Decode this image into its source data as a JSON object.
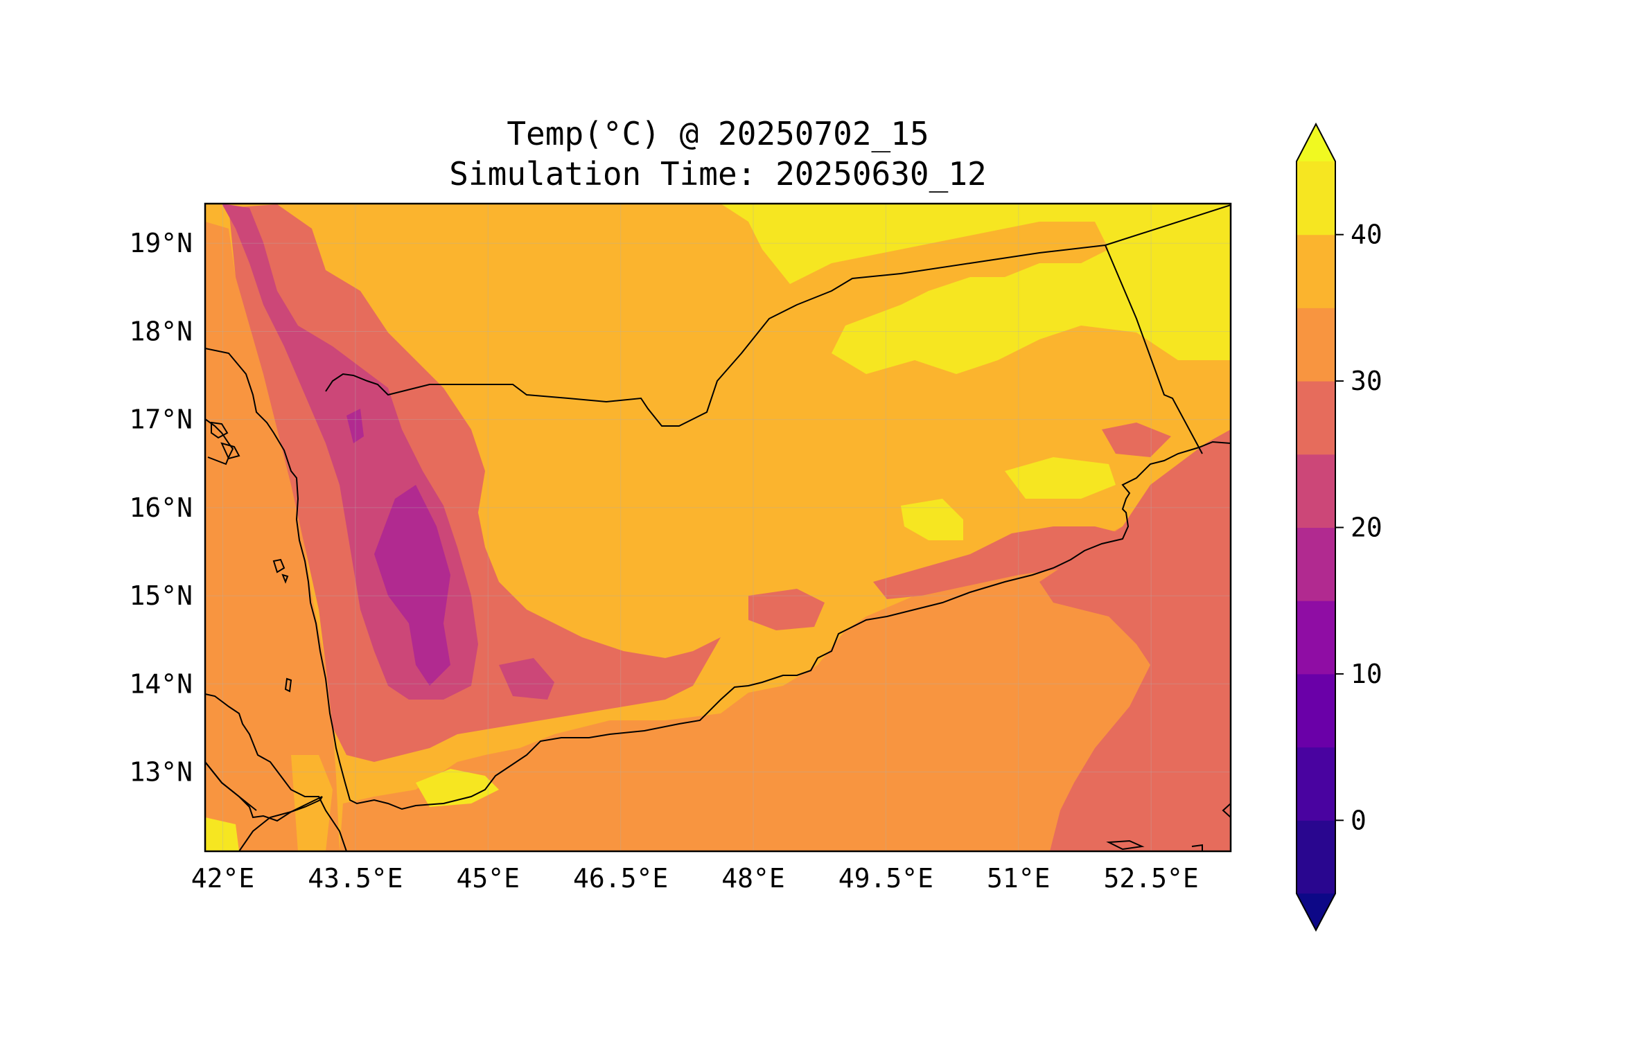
{
  "figure": {
    "title_line1": "Temp(°C) @ 20250702_15",
    "title_line2": "Simulation Time: 20250630_12"
  },
  "map": {
    "lon_range": [
      41.8,
      53.4
    ],
    "lat_range": [
      12.1,
      19.45
    ],
    "lon_ticks": [
      {
        "value": 42.0,
        "label": "42°E"
      },
      {
        "value": 43.5,
        "label": "43.5°E"
      },
      {
        "value": 45.0,
        "label": "45°E"
      },
      {
        "value": 46.5,
        "label": "46.5°E"
      },
      {
        "value": 48.0,
        "label": "48°E"
      },
      {
        "value": 49.5,
        "label": "49.5°E"
      },
      {
        "value": 51.0,
        "label": "51°E"
      },
      {
        "value": 52.5,
        "label": "52.5°E"
      }
    ],
    "lat_ticks": [
      {
        "value": 13,
        "label": "13°N"
      },
      {
        "value": 14,
        "label": "14°N"
      },
      {
        "value": 15,
        "label": "15°N"
      },
      {
        "value": 16,
        "label": "16°N"
      },
      {
        "value": 17,
        "label": "17°N"
      },
      {
        "value": 18,
        "label": "18°N"
      },
      {
        "value": 19,
        "label": "19°N"
      }
    ],
    "gridlines": true,
    "background_color": "#fbb42e"
  },
  "colorbar": {
    "ticks": [
      {
        "value": 0,
        "label": "0"
      },
      {
        "value": 10,
        "label": "10"
      },
      {
        "value": 20,
        "label": "20"
      },
      {
        "value": 30,
        "label": "30"
      },
      {
        "value": 40,
        "label": "40"
      }
    ],
    "extend": "both",
    "levels": [
      {
        "min": -5,
        "max": 0,
        "color": "#29068f"
      },
      {
        "min": 0,
        "max": 5,
        "color": "#4903a0"
      },
      {
        "min": 5,
        "max": 10,
        "color": "#6a00a8"
      },
      {
        "min": 10,
        "max": 15,
        "color": "#8f0da4"
      },
      {
        "min": 15,
        "max": 20,
        "color": "#b12a90"
      },
      {
        "min": 20,
        "max": 25,
        "color": "#cc4778"
      },
      {
        "min": 25,
        "max": 30,
        "color": "#e66c5c"
      },
      {
        "min": 30,
        "max": 35,
        "color": "#f89540"
      },
      {
        "min": 35,
        "max": 40,
        "color": "#fbb42e"
      },
      {
        "min": 40,
        "max": 45,
        "color": "#f6e621"
      }
    ],
    "under_color": "#0d0887",
    "over_color": "#f0f921"
  }
}
